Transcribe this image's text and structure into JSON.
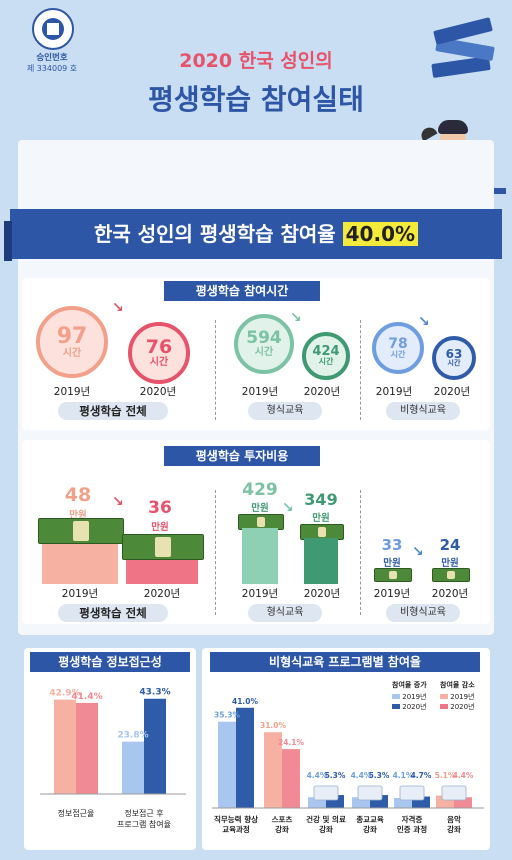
{
  "header": {
    "badge_line1": "승인번호",
    "badge_line2": "제 334009 호",
    "title_line1": "2020 한국 성인의",
    "title_line2": "평생학습 참여실태"
  },
  "banner": {
    "text": "한국 성인의 평생학습 참여율",
    "rate": "40.0%"
  },
  "colors": {
    "navy": "#2d56a6",
    "pink": "#f08a95",
    "salmon": "#f2a08a",
    "green": "#7cc2a4",
    "blue": "#6f9ee0",
    "darkblue": "#2f5ca8",
    "highlight": "#f4ea3c"
  },
  "time_section": {
    "title": "평생학습 참여시간",
    "unit": "시간",
    "groups": [
      {
        "label": "평생학습 전체",
        "y2019": "2019년",
        "y2020": "2020년",
        "v2019": "97",
        "v2020": "76"
      },
      {
        "label": "형식교육",
        "y2019": "2019년",
        "y2020": "2020년",
        "v2019": "594",
        "v2020": "424"
      },
      {
        "label": "비형식교육",
        "y2019": "2019년",
        "y2020": "2020년",
        "v2019": "78",
        "v2020": "63"
      }
    ]
  },
  "cost_section": {
    "title": "평생학습 투자비용",
    "unit": "만원",
    "groups": [
      {
        "label": "평생학습 전체",
        "y2019": "2019년",
        "y2020": "2020년",
        "v2019": "48",
        "v2020": "36"
      },
      {
        "label": "형식교육",
        "y2019": "2019년",
        "y2020": "2020년",
        "v2019": "429",
        "v2020": "349"
      },
      {
        "label": "비형식교육",
        "y2019": "2019년",
        "y2020": "2020년",
        "v2019": "33",
        "v2020": "24"
      }
    ]
  },
  "access_section": {
    "title": "평생학습 정보접근성",
    "bars": [
      {
        "label_line1": "정보접근율",
        "label_line2": "",
        "v2019": "42.9%",
        "v2020": "41.4%"
      },
      {
        "label_line1": "정보접근 후",
        "label_line2": "프로그램 참여율",
        "v2019": "23.8%",
        "v2020": "43.3%"
      }
    ]
  },
  "program_section": {
    "title": "비형식교육 프로그램별 참여율",
    "legend_up": {
      "title": "참여율 증가",
      "y2019": "2019년",
      "y2020": "2020년"
    },
    "legend_down": {
      "title": "참여율 감소",
      "y2019": "2019년",
      "y2020": "2020년"
    },
    "items": [
      {
        "line1": "직무능력 향상",
        "line2": "교육과정",
        "v2019": "35.3%",
        "v2020": "41.0%"
      },
      {
        "line1": "스포츠",
        "line2": "강좌",
        "v2019": "31.0%",
        "v2020": "24.1%"
      },
      {
        "line1": "건강 및 의료",
        "line2": "강좌",
        "v2019": "4.4%",
        "v2020": "5.3%"
      },
      {
        "line1": "종교교육",
        "line2": "강좌",
        "v2019": "4.4%",
        "v2020": "5.3%"
      },
      {
        "line1": "자격증",
        "line2": "인증 과정",
        "v2019": "4.1%",
        "v2020": "4.7%"
      },
      {
        "line1": "음악",
        "line2": "강좌",
        "v2019": "5.1%",
        "v2020": "4.4%"
      }
    ]
  },
  "chart_data": [
    {
      "type": "bar",
      "title": "평생학습 참여시간",
      "categories": [
        "평생학습 전체",
        "형식교육",
        "비형식교육"
      ],
      "series": [
        {
          "name": "2019년",
          "values": [
            97,
            594,
            78
          ]
        },
        {
          "name": "2020년",
          "values": [
            76,
            424,
            63
          ]
        }
      ]
    },
    {
      "type": "bar",
      "title": "평생학습 투자비용",
      "categories": [
        "평생학습 전체",
        "형식교육",
        "비형식교육"
      ],
      "series": [
        {
          "name": "2019년",
          "values": [
            48,
            429,
            33
          ]
        },
        {
          "name": "2020년",
          "values": [
            36,
            349,
            24
          ]
        }
      ]
    },
    {
      "type": "bar",
      "title": "평생학습 정보접근성",
      "categories": [
        "정보접근율",
        "정보접근 후 프로그램 참여율"
      ],
      "series": [
        {
          "name": "2019년",
          "values": [
            42.9,
            23.8
          ]
        },
        {
          "name": "2020년",
          "values": [
            41.4,
            43.3
          ]
        }
      ],
      "ylim": [
        0,
        50
      ]
    },
    {
      "type": "bar",
      "title": "비형식교육 프로그램별 참여율",
      "categories": [
        "직무능력 향상 교육과정",
        "스포츠 강좌",
        "건강 및 의료 강좌",
        "종교교육 강좌",
        "자격증 인증 과정",
        "음악 강좌"
      ],
      "series": [
        {
          "name": "2019년",
          "values": [
            35.3,
            31.0,
            4.4,
            4.4,
            4.1,
            5.1
          ]
        },
        {
          "name": "2020년",
          "values": [
            41.0,
            24.1,
            5.3,
            5.3,
            4.7,
            4.4
          ]
        }
      ],
      "ylim": [
        0,
        45
      ]
    }
  ]
}
